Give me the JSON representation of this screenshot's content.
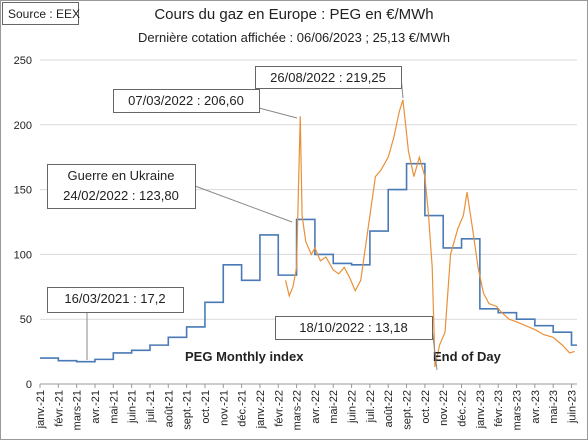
{
  "chart_data": {
    "type": "line",
    "title": "Cours du gaz en Europe : PEG en €/MWh",
    "subtitle": "Dernière cotation affichée : 06/06/2023 ; 25,13 €/MWh",
    "source": "Source : EEX",
    "xlim": [
      0,
      29.3
    ],
    "xticks": [
      {
        "value": 0,
        "label": "janv.-21"
      },
      {
        "value": 1,
        "label": "févr.-21"
      },
      {
        "value": 2,
        "label": "mars-21"
      },
      {
        "value": 3,
        "label": "avr.-21"
      },
      {
        "value": 4,
        "label": "mai-21"
      },
      {
        "value": 5,
        "label": "juin-21"
      },
      {
        "value": 6,
        "label": "juil.-21"
      },
      {
        "value": 7,
        "label": "août-21"
      },
      {
        "value": 8,
        "label": "sept.-21"
      },
      {
        "value": 9,
        "label": "oct.-21"
      },
      {
        "value": 10,
        "label": "nov.-21"
      },
      {
        "value": 11,
        "label": "déc.-21"
      },
      {
        "value": 12,
        "label": "janv.-22"
      },
      {
        "value": 13,
        "label": "févr.-22"
      },
      {
        "value": 14,
        "label": "mars-22"
      },
      {
        "value": 15,
        "label": "avr.-22"
      },
      {
        "value": 16,
        "label": "mai-22"
      },
      {
        "value": 17,
        "label": "juin-22"
      },
      {
        "value": 18,
        "label": "juil.-22"
      },
      {
        "value": 19,
        "label": "août-22"
      },
      {
        "value": 20,
        "label": "sept.-22"
      },
      {
        "value": 21,
        "label": "oct.-22"
      },
      {
        "value": 22,
        "label": "nov.-22"
      },
      {
        "value": 23,
        "label": "déc.-22"
      },
      {
        "value": 24,
        "label": "janv.-23"
      },
      {
        "value": 25,
        "label": "févr.-23"
      },
      {
        "value": 26,
        "label": "mars-23"
      },
      {
        "value": 27,
        "label": "avr.-23"
      },
      {
        "value": 28,
        "label": "mai-23"
      },
      {
        "value": 29,
        "label": "juin-23"
      }
    ],
    "ylim": [
      0,
      250
    ],
    "yticks": [
      0,
      50,
      100,
      150,
      200,
      250
    ],
    "grid": true,
    "series": [
      {
        "name": "PEG Monthly index",
        "color": "#4a7ab5",
        "step": true,
        "x": [
          0,
          1,
          2,
          3,
          4,
          5,
          6,
          7,
          8,
          9,
          10,
          11,
          12,
          13,
          14,
          15,
          16,
          17,
          18,
          19,
          20,
          21,
          22,
          23,
          24,
          25,
          26,
          27,
          28,
          29
        ],
        "values": [
          20,
          18,
          17.2,
          19,
          24,
          26,
          30,
          36,
          44,
          63,
          92,
          80,
          115,
          84,
          127,
          100,
          93,
          92,
          118,
          150,
          170,
          130,
          105,
          112,
          58,
          55,
          50,
          45,
          40,
          30
        ]
      },
      {
        "name": "End of Day",
        "color": "#e8913a",
        "step": false,
        "x": [
          13.4,
          13.6,
          13.8,
          14.0,
          14.1,
          14.2,
          14.3,
          14.5,
          14.8,
          15.0,
          15.3,
          15.6,
          16.0,
          16.3,
          16.6,
          16.9,
          17.2,
          17.5,
          17.8,
          18.0,
          18.3,
          18.6,
          19.0,
          19.3,
          19.6,
          19.8,
          19.95,
          20.1,
          20.4,
          20.7,
          21.0,
          21.2,
          21.4,
          21.5,
          21.55,
          21.8,
          22.1,
          22.4,
          22.8,
          23.1,
          23.3,
          23.6,
          23.9,
          24.2,
          24.5,
          24.9,
          25.2,
          25.6,
          26.0,
          26.5,
          27.0,
          27.5,
          28.0,
          28.5,
          28.9,
          29.17
        ],
        "values": [
          80,
          68,
          75,
          90,
          150,
          206.6,
          130,
          110,
          100,
          105,
          95,
          98,
          88,
          85,
          90,
          82,
          72,
          80,
          110,
          130,
          160,
          165,
          175,
          190,
          210,
          219.25,
          200,
          180,
          160,
          175,
          160,
          130,
          90,
          40,
          13.18,
          30,
          40,
          100,
          120,
          130,
          148,
          120,
          90,
          70,
          62,
          60,
          55,
          50,
          48,
          45,
          42,
          38,
          36,
          30,
          24,
          25.13
        ]
      }
    ],
    "annotations": [
      [
        "26/08/2022 : 219,25"
      ],
      [
        "07/03/2022 : 206,60"
      ],
      [
        "Guerre en Ukraine",
        "24/02/2022 : 123,80"
      ],
      [
        "16/03/2021 : 17,2"
      ],
      [
        "18/10/2022 : 13,18"
      ]
    ]
  }
}
